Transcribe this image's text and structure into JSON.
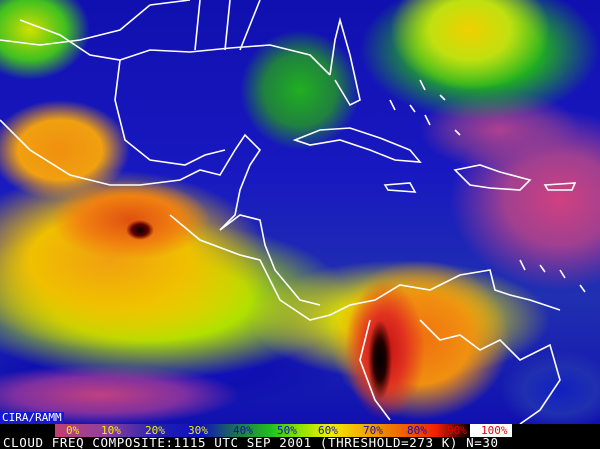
{
  "badge": "CIRA/RAMM",
  "legend": {
    "labels": [
      {
        "text": "0%",
        "color": "#f0f000"
      },
      {
        "text": "10%",
        "color": "#f0f000"
      },
      {
        "text": "20%",
        "color": "#f0f000"
      },
      {
        "text": "30%",
        "color": "#f0f000"
      },
      {
        "text": "40%",
        "color": "#1010c0"
      },
      {
        "text": "50%",
        "color": "#1010c0"
      },
      {
        "text": "60%",
        "color": "#1010c0"
      },
      {
        "text": "70%",
        "color": "#1010c0"
      },
      {
        "text": "80%",
        "color": "#1010c0"
      },
      {
        "text": "90%",
        "color": "#f00000"
      },
      {
        "text": "100%",
        "color": "#f00000"
      }
    ]
  },
  "caption": "CLOUD FREQ COMPOSITE:1115 UTC SEP 2001 (THRESHOLD=273 K) N=30"
}
